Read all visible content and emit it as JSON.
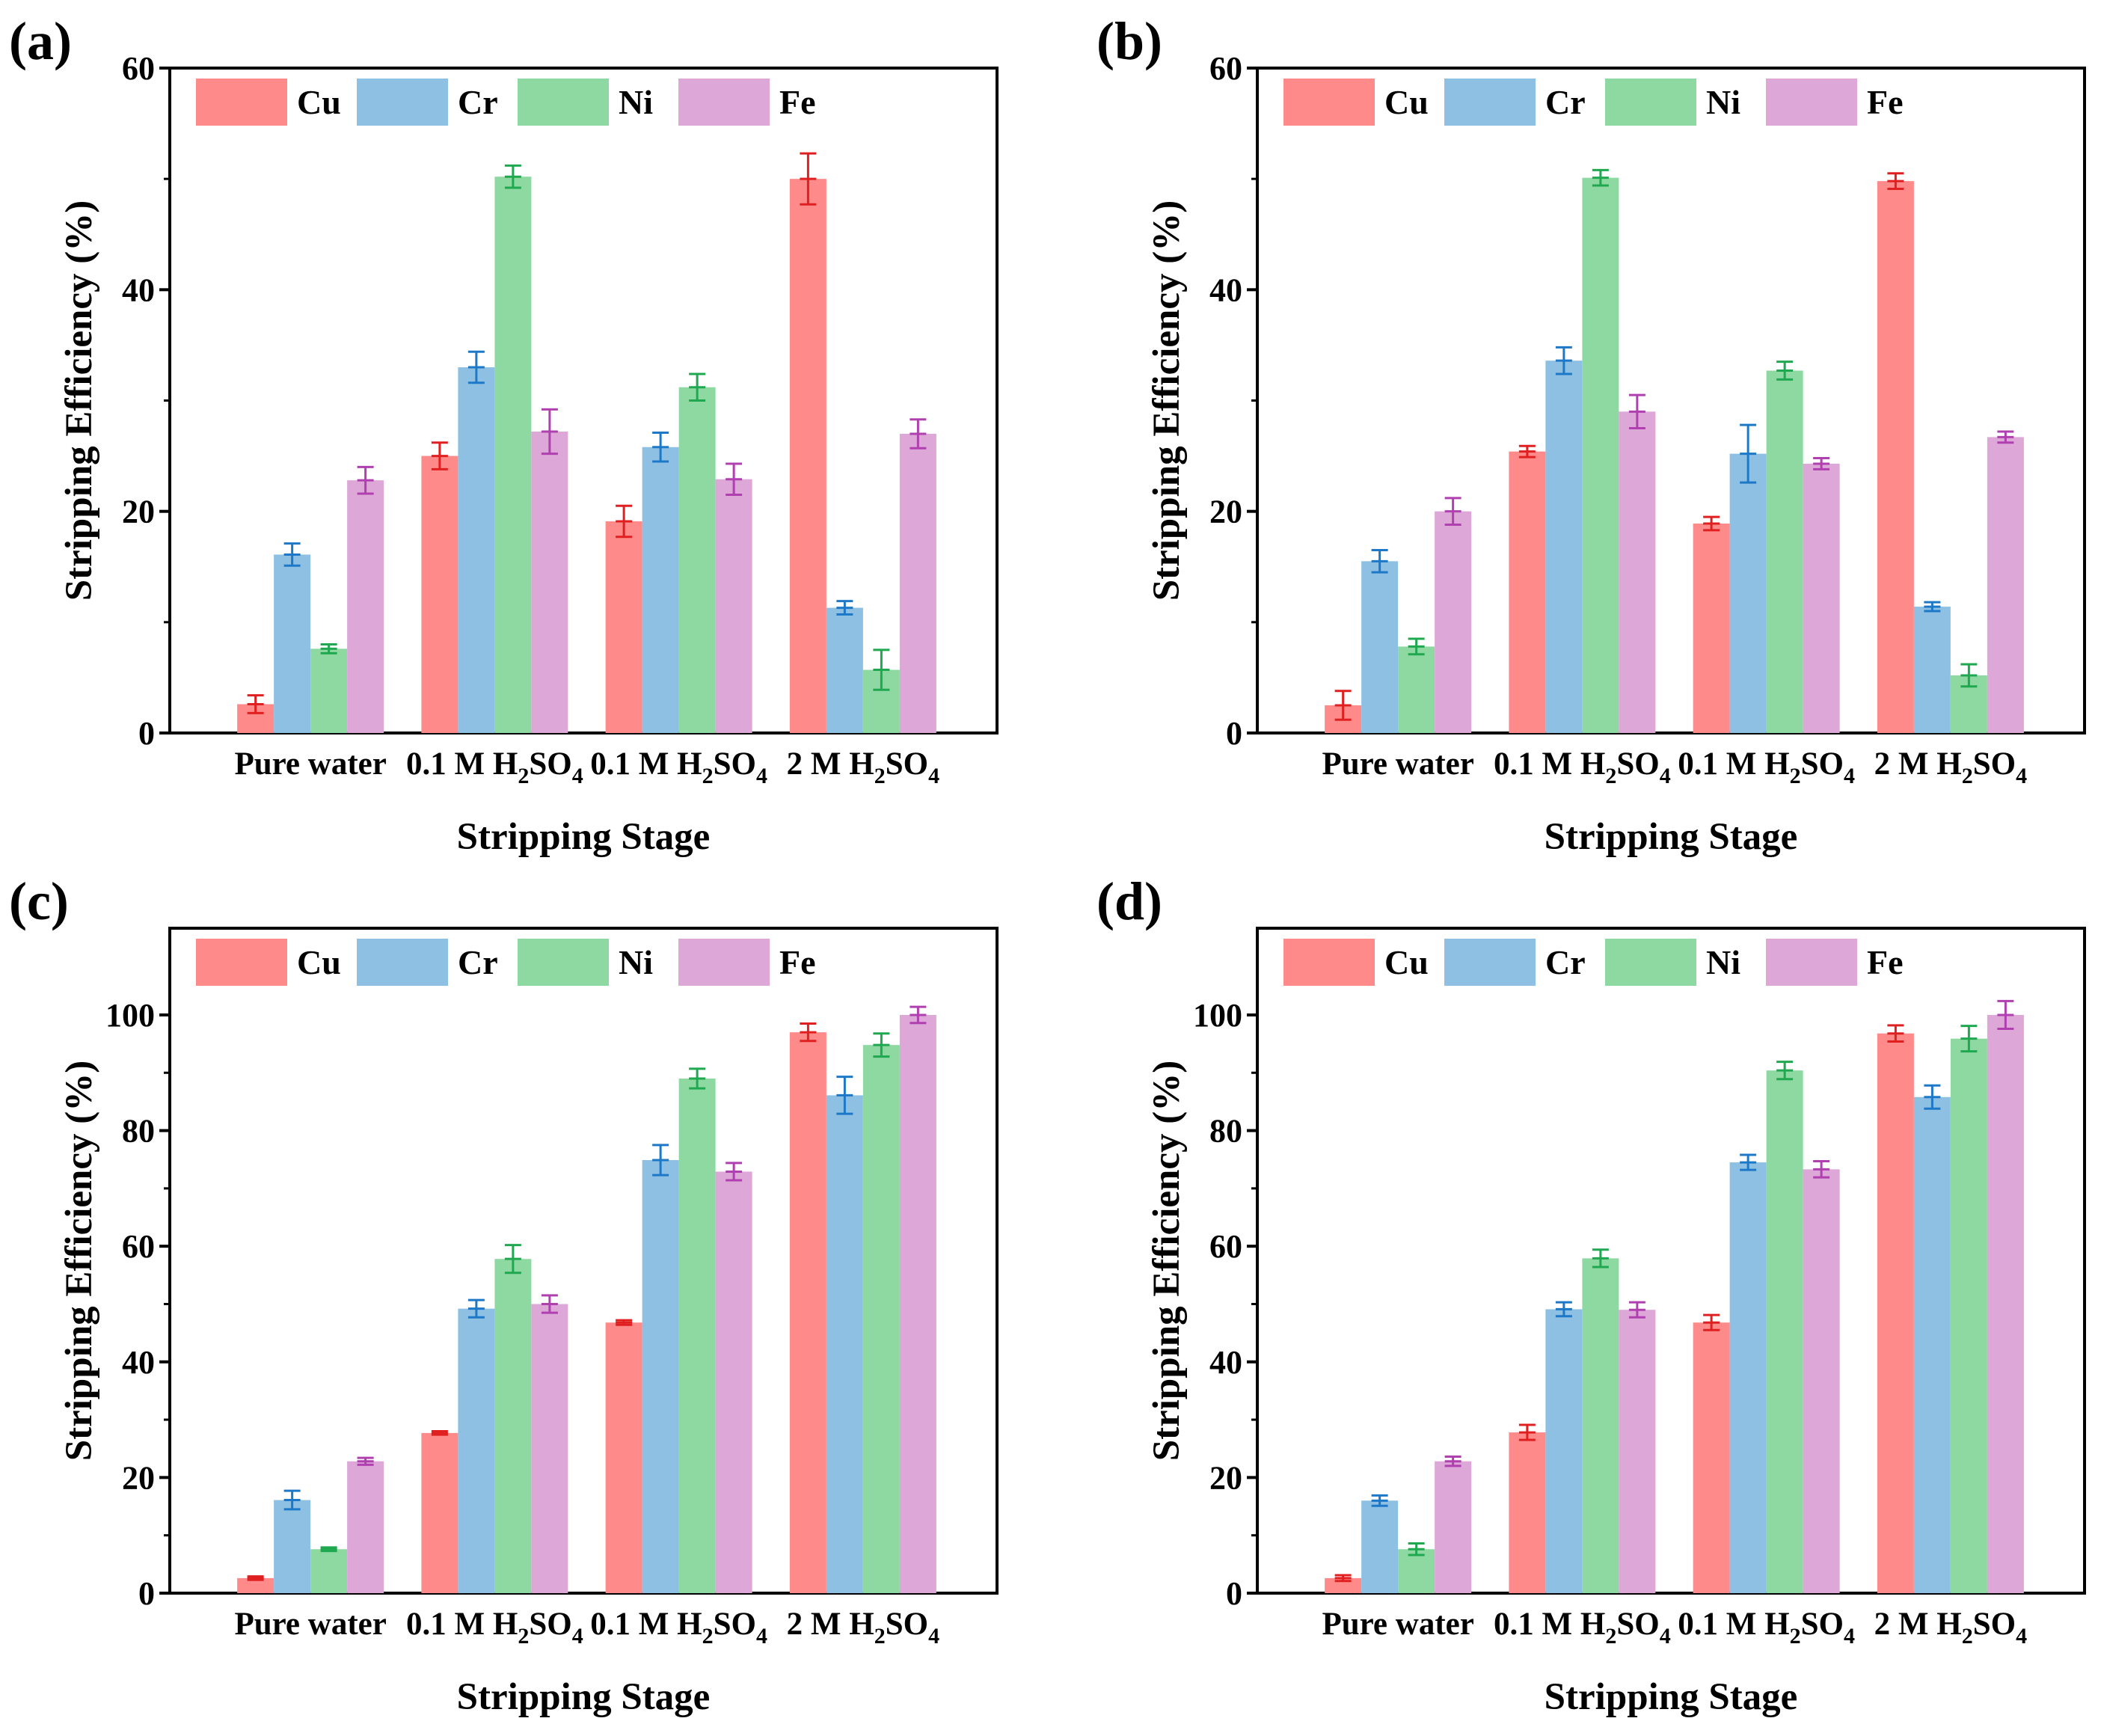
{
  "colors": {
    "Cu": "#FF8A8A",
    "Cr": "#8EC0E4",
    "Ni": "#8ED9A2",
    "Fe": "#DDA7D8",
    "Cu_err": "#E02020",
    "Cr_err": "#1E78C8",
    "Ni_err": "#20A850",
    "Fe_err": "#B040B0"
  },
  "chart_data": [
    {
      "type": "bar",
      "panel_label": "(a)",
      "xlabel": "Stripping Stage",
      "ylabel": "Stripping Efficiency (%)",
      "ylim": [
        0,
        60
      ],
      "yticks": [
        0,
        20,
        40,
        60
      ],
      "legend": "top",
      "categories": [
        {
          "main": "Pure water",
          "sub": "",
          "tail": ""
        },
        {
          "main": "0.1 M H",
          "sub": "2",
          "tail": "SO",
          "sub2": "4"
        },
        {
          "main": "0.1 M H",
          "sub": "2",
          "tail": "SO",
          "sub2": "4"
        },
        {
          "main": "2 M H",
          "sub": "2",
          "tail": "SO",
          "sub2": "4"
        }
      ],
      "series": [
        {
          "name": "Cu",
          "values": [
            2.6,
            25.0,
            19.1,
            50.0
          ],
          "errors": [
            0.8,
            1.2,
            1.4,
            2.3
          ]
        },
        {
          "name": "Cr",
          "values": [
            16.1,
            33.0,
            25.8,
            11.3
          ],
          "errors": [
            1.0,
            1.4,
            1.3,
            0.6
          ]
        },
        {
          "name": "Ni",
          "values": [
            7.6,
            50.2,
            31.2,
            5.7
          ],
          "errors": [
            0.4,
            1.0,
            1.2,
            1.8
          ]
        },
        {
          "name": "Fe",
          "values": [
            22.8,
            27.2,
            22.9,
            27.0
          ],
          "errors": [
            1.2,
            2.0,
            1.4,
            1.3
          ]
        }
      ]
    },
    {
      "type": "bar",
      "panel_label": "(b)",
      "xlabel": "Stripping Stage",
      "ylabel": "Stripping Efficiency (%)",
      "ylim": [
        0,
        60
      ],
      "yticks": [
        0,
        20,
        40,
        60
      ],
      "legend": "top",
      "categories": [
        {
          "main": "Pure water",
          "sub": "",
          "tail": ""
        },
        {
          "main": "0.1 M H",
          "sub": "2",
          "tail": "SO",
          "sub2": "4"
        },
        {
          "main": "0.1 M H",
          "sub": "2",
          "tail": "SO",
          "sub2": "4"
        },
        {
          "main": "2 M H",
          "sub": "2",
          "tail": "SO",
          "sub2": "4"
        }
      ],
      "series": [
        {
          "name": "Cu",
          "values": [
            2.5,
            25.4,
            18.9,
            49.8
          ],
          "errors": [
            1.3,
            0.5,
            0.6,
            0.7
          ]
        },
        {
          "name": "Cr",
          "values": [
            15.5,
            33.6,
            25.2,
            11.4
          ],
          "errors": [
            1.0,
            1.2,
            2.6,
            0.4
          ]
        },
        {
          "name": "Ni",
          "values": [
            7.8,
            50.1,
            32.7,
            5.2
          ],
          "errors": [
            0.7,
            0.7,
            0.8,
            1.0
          ]
        },
        {
          "name": "Fe",
          "values": [
            20.0,
            29.0,
            24.3,
            26.7
          ],
          "errors": [
            1.2,
            1.5,
            0.5,
            0.5
          ]
        }
      ]
    },
    {
      "type": "bar",
      "panel_label": "(c)",
      "xlabel": "Stripping Stage",
      "ylabel": "Stripping Efficiency (%)",
      "ylim": [
        0,
        115
      ],
      "yticks": [
        0,
        20,
        40,
        60,
        80,
        100
      ],
      "legend": "top",
      "categories": [
        {
          "main": "Pure water",
          "sub": "",
          "tail": ""
        },
        {
          "main": "0.1 M H",
          "sub": "2",
          "tail": "SO",
          "sub2": "4"
        },
        {
          "main": "0.1 M H",
          "sub": "2",
          "tail": "SO",
          "sub2": "4"
        },
        {
          "main": "2 M H",
          "sub": "2",
          "tail": "SO",
          "sub2": "4"
        }
      ],
      "series": [
        {
          "name": "Cu",
          "values": [
            2.6,
            27.7,
            46.8,
            97.0
          ],
          "errors": [
            0.3,
            0.3,
            0.4,
            1.5
          ]
        },
        {
          "name": "Cr",
          "values": [
            16.1,
            49.2,
            74.9,
            86.1
          ],
          "errors": [
            1.6,
            1.5,
            2.6,
            3.2
          ]
        },
        {
          "name": "Ni",
          "values": [
            7.6,
            57.8,
            89.0,
            94.8
          ],
          "errors": [
            0.3,
            2.4,
            1.7,
            2.0
          ]
        },
        {
          "name": "Fe",
          "values": [
            22.8,
            50.0,
            72.9,
            100.0
          ],
          "errors": [
            0.6,
            1.5,
            1.5,
            1.4
          ]
        }
      ]
    },
    {
      "type": "bar",
      "panel_label": "(d)",
      "xlabel": "Stripping Stage",
      "ylabel": "Stripping Efficiency (%)",
      "ylim": [
        0,
        115
      ],
      "yticks": [
        0,
        20,
        40,
        60,
        80,
        100
      ],
      "legend": "top",
      "categories": [
        {
          "main": "Pure water",
          "sub": "",
          "tail": ""
        },
        {
          "main": "0.1 M H",
          "sub": "2",
          "tail": "SO",
          "sub2": "4"
        },
        {
          "main": "0.1 M H",
          "sub": "2",
          "tail": "SO",
          "sub2": "4"
        },
        {
          "main": "2 M H",
          "sub": "2",
          "tail": "SO",
          "sub2": "4"
        }
      ],
      "series": [
        {
          "name": "Cu",
          "values": [
            2.6,
            27.8,
            46.8,
            96.8
          ],
          "errors": [
            0.5,
            1.3,
            1.3,
            1.4
          ]
        },
        {
          "name": "Cr",
          "values": [
            16.0,
            49.1,
            74.5,
            85.8
          ],
          "errors": [
            0.9,
            1.2,
            1.3,
            2.0
          ]
        },
        {
          "name": "Ni",
          "values": [
            7.6,
            57.9,
            90.4,
            95.9
          ],
          "errors": [
            1.0,
            1.5,
            1.5,
            2.2
          ]
        },
        {
          "name": "Fe",
          "values": [
            22.8,
            49.0,
            73.3,
            100.0
          ],
          "errors": [
            0.8,
            1.3,
            1.4,
            2.4
          ]
        }
      ]
    }
  ]
}
